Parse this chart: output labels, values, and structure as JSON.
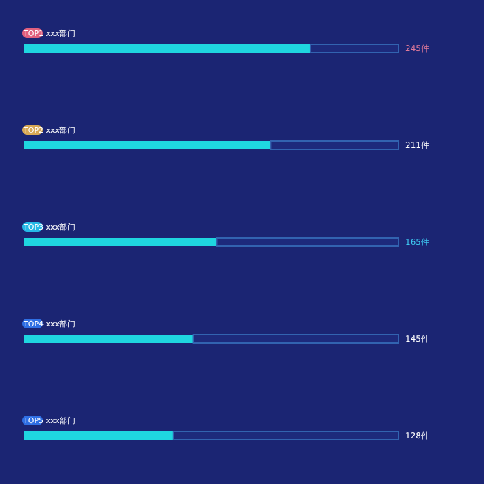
{
  "chart_data": {
    "type": "bar",
    "orientation": "horizontal",
    "stacked": true,
    "categories": [
      "TOP1 xxx部门",
      "TOP2 xxx部门",
      "TOP3 xxx部门",
      "TOP4 xxx部门",
      "TOP5 xxx部门"
    ],
    "series": [
      {
        "color": "#1fd6e0",
        "values": [
          245,
          211,
          165,
          145,
          128
        ],
        "value_labels": [
          "245件",
          "211件",
          "165件",
          "145件",
          "128件"
        ]
      },
      {
        "color": "#3263b0",
        "values": [
          75,
          109,
          155,
          175,
          192
        ]
      }
    ],
    "xlim": [
      0,
      320
    ]
  }
}
